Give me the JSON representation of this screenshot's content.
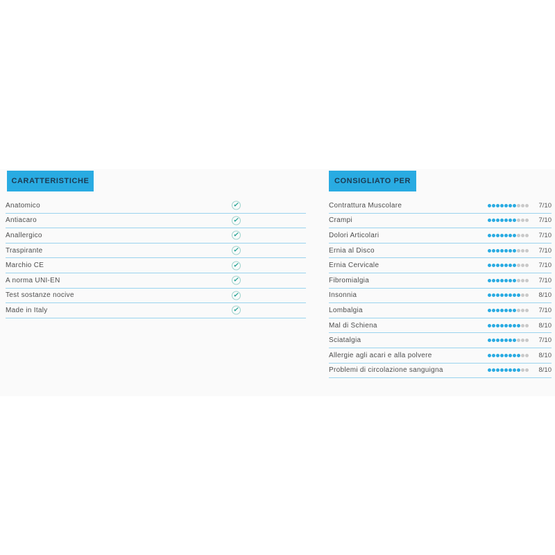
{
  "colors": {
    "accent": "#29abe2",
    "separator": "#9ad3ee",
    "dot_filled": "#29abe2",
    "dot_empty": "#c9c9c9",
    "header_text": "#1c3a52",
    "label_text": "#4d4d4d",
    "band_bg": "#fafafa",
    "check": "#2aa596"
  },
  "caratteristiche": {
    "title": "CARATTERISTICHE",
    "check_symbol": "✓",
    "check_icon": "circled-checkmark",
    "items": [
      {
        "label": "Anatomico",
        "checked": true
      },
      {
        "label": "Antiacaro",
        "checked": true
      },
      {
        "label": "Anallergico",
        "checked": true
      },
      {
        "label": "Traspirante",
        "checked": true
      },
      {
        "label": "Marchio CE",
        "checked": true
      },
      {
        "label": "A norma UNI-EN",
        "checked": true
      },
      {
        "label": "Test sostanze nocive",
        "checked": true
      },
      {
        "label": "Made in Italy",
        "checked": true
      }
    ]
  },
  "consigliato": {
    "title": "CONSIGLIATO PER",
    "max_score": 10,
    "items": [
      {
        "label": "Contrattura Muscolare",
        "score": 7,
        "score_label": "7/10"
      },
      {
        "label": "Crampi",
        "score": 7,
        "score_label": "7/10"
      },
      {
        "label": "Dolori Articolari",
        "score": 7,
        "score_label": "7/10"
      },
      {
        "label": "Ernia al Disco",
        "score": 7,
        "score_label": "7/10"
      },
      {
        "label": "Ernia Cervicale",
        "score": 7,
        "score_label": "7/10"
      },
      {
        "label": "Fibromialgia",
        "score": 7,
        "score_label": "7/10"
      },
      {
        "label": "Insonnia",
        "score": 8,
        "score_label": "8/10"
      },
      {
        "label": "Lombalgia",
        "score": 7,
        "score_label": "7/10"
      },
      {
        "label": "Mal di Schiena",
        "score": 8,
        "score_label": "8/10"
      },
      {
        "label": "Sciatalgia",
        "score": 7,
        "score_label": "7/10"
      },
      {
        "label": "Allergie agli acari e alla polvere",
        "score": 8,
        "score_label": "8/10"
      },
      {
        "label": "Problemi di circolazione sanguigna",
        "score": 8,
        "score_label": "8/10"
      }
    ]
  }
}
